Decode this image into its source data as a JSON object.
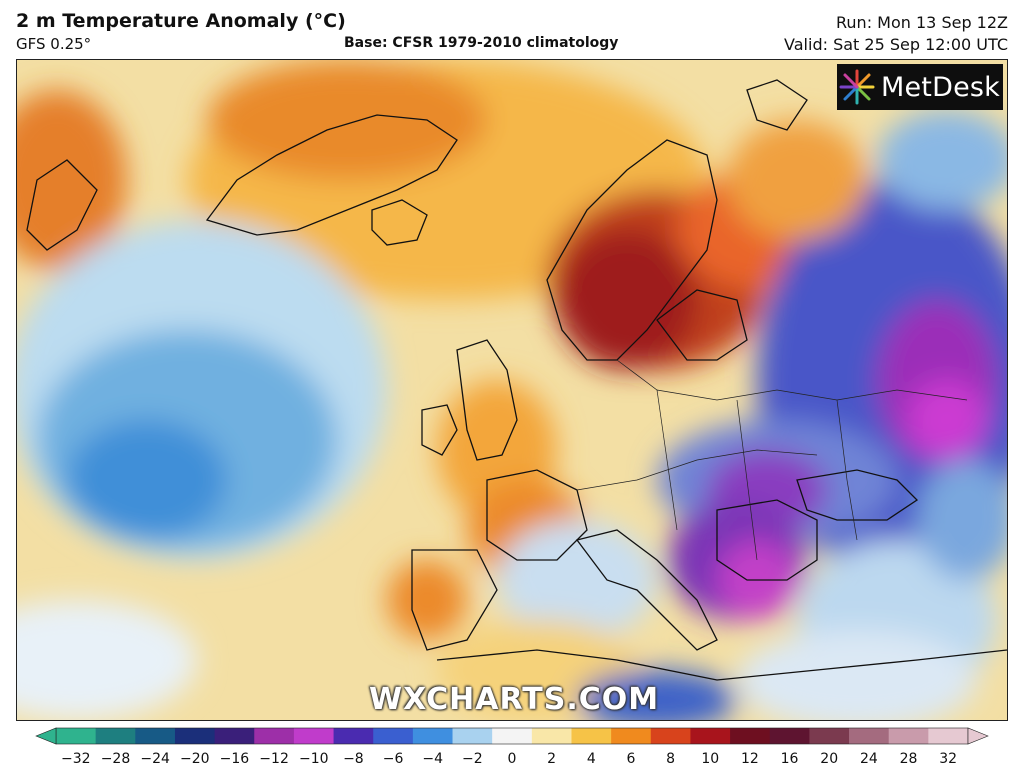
{
  "header": {
    "title": "2 m Temperature Anomaly (°C)",
    "model": "GFS 0.25°",
    "base": "Base: CFSR 1979-2010 climatology",
    "run": "Run: Mon 13 Sep 12Z",
    "valid": "Valid: Sat 25 Sep 12:00 UTC"
  },
  "logo": {
    "text": "MetDesk"
  },
  "watermark": "WXCHARTS.COM",
  "colorbar": {
    "ticks": [
      "−32",
      "−28",
      "−24",
      "−20",
      "−16",
      "−12",
      "−10",
      "−8",
      "−6",
      "−4",
      "−2",
      "0",
      "2",
      "4",
      "6",
      "8",
      "10",
      "12",
      "16",
      "20",
      "24",
      "28",
      "32"
    ],
    "colors": [
      "#2fb38e",
      "#1e7f80",
      "#175a86",
      "#1b2f7a",
      "#3a1f7a",
      "#9d2fa8",
      "#c03ccb",
      "#4a2bb0",
      "#3a5fd0",
      "#3f8fe0",
      "#a9d2ef",
      "#f4f4f4",
      "#f9e7a8",
      "#f6c347",
      "#f08a1e",
      "#d8431c",
      "#a8141c",
      "#6e0f20",
      "#5e1430",
      "#7b3a4f",
      "#a46b7f",
      "#c99bab",
      "#e6c9d2"
    ]
  }
}
